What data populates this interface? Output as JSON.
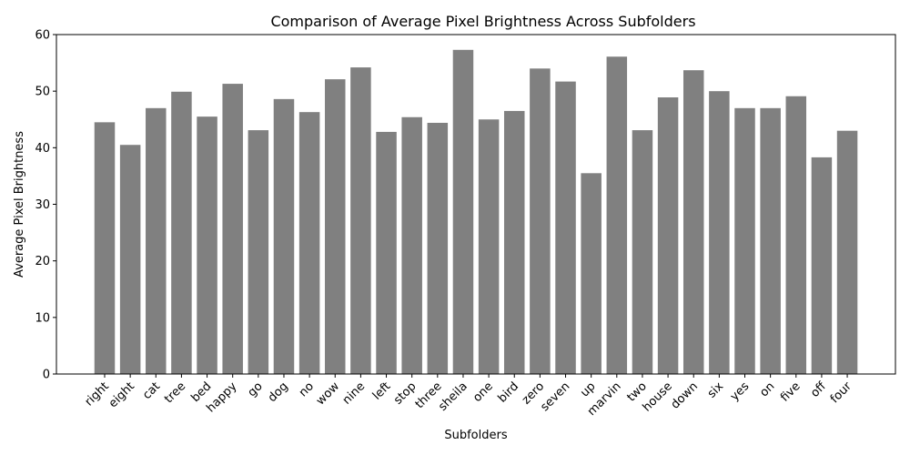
{
  "chart_data": {
    "type": "bar",
    "title": "Comparison of Average Pixel Brightness Across Subfolders",
    "xlabel": "Subfolders",
    "ylabel": "Average Pixel Brightness",
    "ylim": [
      0,
      60
    ],
    "yticks": [
      0,
      10,
      20,
      30,
      40,
      50,
      60
    ],
    "bar_color": "#808080",
    "grid": false,
    "categories": [
      "right",
      "eight",
      "cat",
      "tree",
      "bed",
      "happy",
      "go",
      "dog",
      "no",
      "wow",
      "nine",
      "left",
      "stop",
      "three",
      "sheila",
      "one",
      "bird",
      "zero",
      "seven",
      "up",
      "marvin",
      "two",
      "house",
      "down",
      "six",
      "yes",
      "on",
      "five",
      "off",
      "four"
    ],
    "values": [
      44.5,
      40.5,
      47.0,
      49.9,
      45.5,
      51.3,
      43.1,
      48.6,
      46.3,
      52.1,
      54.2,
      42.8,
      45.4,
      44.4,
      57.3,
      45.0,
      46.5,
      54.0,
      51.7,
      35.5,
      56.1,
      43.1,
      48.9,
      53.7,
      50.0,
      47.0,
      47.0,
      49.1,
      38.3,
      43.0
    ]
  }
}
